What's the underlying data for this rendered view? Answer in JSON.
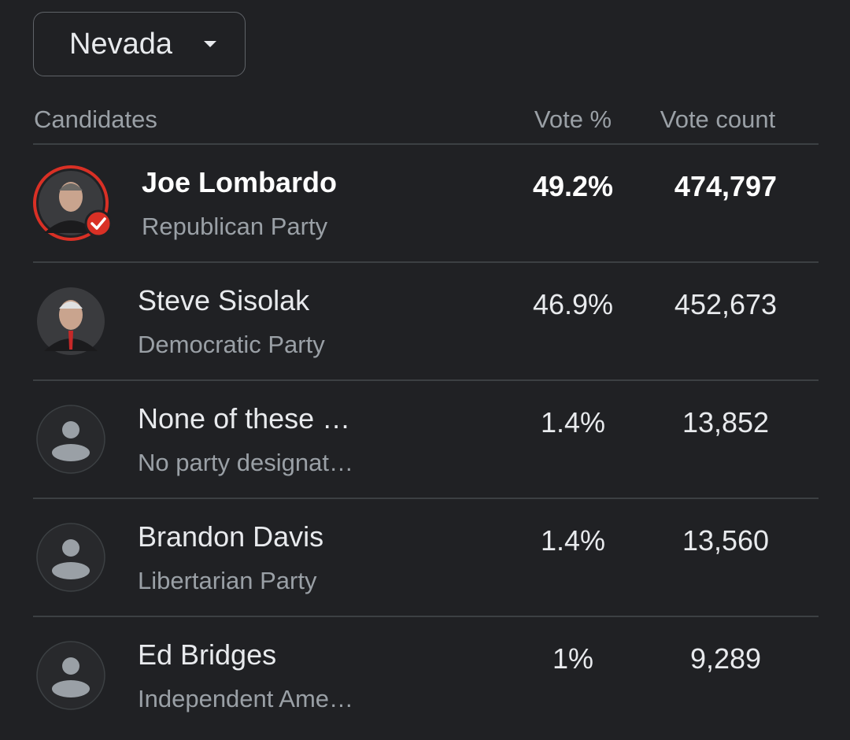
{
  "dropdown": {
    "label": "Nevada"
  },
  "table": {
    "headers": [
      "Candidates",
      "Vote %",
      "Vote count"
    ],
    "rows": [
      {
        "name": "Joe Lombardo",
        "party": "Republican Party",
        "vote_percent": "49.2%",
        "vote_count": "474,797",
        "winner": true,
        "photo": true
      },
      {
        "name": "Steve Sisolak",
        "party": "Democratic Party",
        "vote_percent": "46.9%",
        "vote_count": "452,673",
        "winner": false,
        "photo": true
      },
      {
        "name": "None of these …",
        "party": "No party designat…",
        "vote_percent": "1.4%",
        "vote_count": "13,852",
        "winner": false,
        "photo": false
      },
      {
        "name": "Brandon Davis",
        "party": "Libertarian Party",
        "vote_percent": "1.4%",
        "vote_count": "13,560",
        "winner": false,
        "photo": false
      },
      {
        "name": "Ed Bridges",
        "party": "Independent Ame…",
        "vote_percent": "1%",
        "vote_count": "9,289",
        "winner": false,
        "photo": false
      }
    ]
  }
}
